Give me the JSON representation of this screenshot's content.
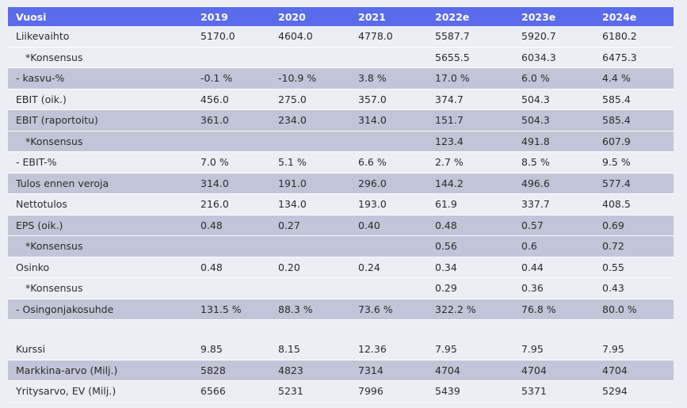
{
  "header": [
    "Vuosi",
    "2019",
    "2020",
    "2021",
    "2022e",
    "2023e",
    "2024e"
  ],
  "rows": [
    {
      "label": "Liikevaihto",
      "values": [
        "5170.0",
        "4604.0",
        "4778.0",
        "5587.7",
        "5920.7",
        "6180.2"
      ]
    },
    {
      "label": "*Konsensus",
      "values": [
        "",
        "",
        "",
        "5655.5",
        "6034.3",
        "6475.3"
      ]
    },
    {
      "label": "- kasvu-%",
      "values": [
        "-0.1 %",
        "-10.9 %",
        "3.8 %",
        "17.0 %",
        "6.0 %",
        "4.4 %"
      ]
    },
    {
      "label": "EBIT (oik.)",
      "values": [
        "456.0",
        "275.0",
        "357.0",
        "374.7",
        "504.3",
        "585.4"
      ]
    },
    {
      "label": "EBIT (raportoitu)",
      "values": [
        "361.0",
        "234.0",
        "314.0",
        "151.7",
        "504.3",
        "585.4"
      ]
    },
    {
      "label": "*Konsensus",
      "values": [
        "",
        "",
        "",
        "123.4",
        "491.8",
        "607.9"
      ]
    },
    {
      "label": "- EBIT-%",
      "values": [
        "7.0 %",
        "5.1 %",
        "6.6 %",
        "2.7 %",
        "8.5 %",
        "9.5 %"
      ]
    },
    {
      "label": "Tulos ennen veroja",
      "values": [
        "314.0",
        "191.0",
        "296.0",
        "144.2",
        "496.6",
        "577.4"
      ]
    },
    {
      "label": "Nettotulos",
      "values": [
        "216.0",
        "134.0",
        "193.0",
        "61.9",
        "337.7",
        "408.5"
      ]
    },
    {
      "label": "EPS (oik.)",
      "values": [
        "0.48",
        "0.27",
        "0.40",
        "0.48",
        "0.57",
        "0.69"
      ]
    },
    {
      "label": "*Konsensus",
      "values": [
        "",
        "",
        "",
        "0.56",
        "0.6",
        "0.72"
      ]
    },
    {
      "label": "Osinko",
      "values": [
        "0.48",
        "0.20",
        "0.24",
        "0.34",
        "0.44",
        "0.55"
      ]
    },
    {
      "label": "*Konsensus",
      "values": [
        "",
        "",
        "",
        "0.29",
        "0.36",
        "0.43"
      ]
    },
    {
      "label": "- Osingonjakosuhde",
      "values": [
        "131.5 %",
        "88.3 %",
        "73.6 %",
        "322.2 %",
        "76.8 %",
        "80.0 %"
      ]
    }
  ],
  "rows2": [
    {
      "label": "Kurssi",
      "values": [
        "9.85",
        "8.15",
        "12.36",
        "7.95",
        "7.95",
        "7.95"
      ]
    },
    {
      "label": "Markkina-arvo (Milj.)",
      "values": [
        "5828",
        "4823",
        "7314",
        "4704",
        "4704",
        "4704"
      ]
    },
    {
      "label": "Yritysarvo, EV (Milj.)",
      "values": [
        "6566",
        "5231",
        "7996",
        "5439",
        "5371",
        "5294"
      ]
    }
  ]
}
